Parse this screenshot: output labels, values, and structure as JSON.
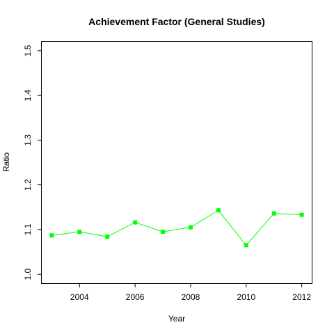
{
  "chart_data": {
    "type": "line",
    "title": "Achievement Factor (General Studies)",
    "xlabel": "Year",
    "ylabel": "Ratio",
    "x": [
      2003,
      2004,
      2005,
      2006,
      2007,
      2008,
      2009,
      2010,
      2011,
      2012
    ],
    "series": [
      {
        "values": [
          1.087,
          1.095,
          1.084,
          1.116,
          1.095,
          1.105,
          1.143,
          1.065,
          1.136,
          1.133
        ],
        "color": "#00ff00"
      }
    ],
    "xlim": [
      2002.64,
      2012.36
    ],
    "ylim": [
      0.98,
      1.52
    ],
    "xticks": [
      "2004",
      "2006",
      "2008",
      "2010",
      "2012"
    ],
    "yticks": [
      "1.0",
      "1.1",
      "1.2",
      "1.3",
      "1.4",
      "1.5"
    ],
    "grid": false,
    "marker": "square"
  }
}
